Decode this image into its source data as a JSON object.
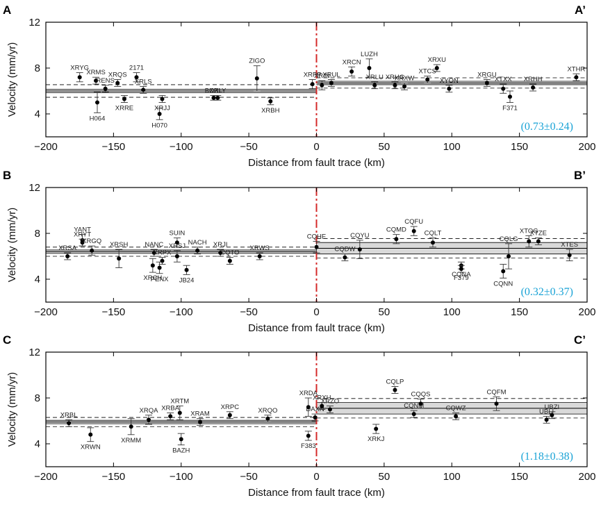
{
  "colors": {
    "fault_line": "#d42a2a",
    "ratio_text": "#1aa3d6",
    "band_fill": "#d9d9d9",
    "points": "#000000"
  },
  "chart_data": [
    {
      "type": "scatter",
      "panel": "A",
      "panel_end": "A’",
      "xlabel": "Distance from fault trace (km)",
      "ylabel": "Velocity (mm/yr)",
      "xlim": [
        -200,
        200
      ],
      "ylim": [
        2,
        12
      ],
      "xticks": [
        -200,
        -150,
        -100,
        -50,
        0,
        50,
        100,
        150,
        200
      ],
      "yticks": [
        4,
        8,
        12
      ],
      "fault_trace_x": 0,
      "left_band": {
        "mean": 6.0,
        "half_width": 0.15,
        "sd": 0.55
      },
      "right_band": {
        "mean": 6.7,
        "half_width": 0.15,
        "sd": 0.45
      },
      "ratio_label": "(0.73±0.24)",
      "points": [
        {
          "name": "XRYG",
          "x": -175,
          "y": 7.2,
          "err": 0.4
        },
        {
          "name": "XRMS",
          "x": -163,
          "y": 6.9,
          "err": 0.3
        },
        {
          "name": "RENS",
          "x": -156,
          "y": 6.2,
          "err": 0.3
        },
        {
          "name": "H064",
          "x": -162,
          "y": 5.0,
          "err": 0.9
        },
        {
          "name": "XRQS",
          "x": -147,
          "y": 6.7,
          "err": 0.3
        },
        {
          "name": "XRRE",
          "x": -142,
          "y": 5.3,
          "err": 0.3
        },
        {
          "name": "2171",
          "x": -133,
          "y": 7.2,
          "err": 0.4
        },
        {
          "name": "XRLS",
          "x": -128,
          "y": 6.1,
          "err": 0.3
        },
        {
          "name": "XRJJ",
          "x": -114,
          "y": 5.3,
          "err": 0.3
        },
        {
          "name": "H070",
          "x": -116,
          "y": 4.0,
          "err": 0.5
        },
        {
          "name": "BOXL",
          "x": -76,
          "y": 5.4,
          "err": 0.2
        },
        {
          "name": "XRLY",
          "x": -73,
          "y": 5.4,
          "err": 0.2
        },
        {
          "name": "ZIGO",
          "x": -44,
          "y": 7.1,
          "err": 1.1
        },
        {
          "name": "XRBH",
          "x": -34,
          "y": 5.1,
          "err": 0.3
        },
        {
          "name": "XRPP",
          "x": -3,
          "y": 6.6,
          "err": 0.4
        },
        {
          "name": "XRIN",
          "x": 4,
          "y": 6.5,
          "err": 0.4
        },
        {
          "name": "XRUL",
          "x": 11,
          "y": 6.7,
          "err": 0.3
        },
        {
          "name": "XRCN",
          "x": 26,
          "y": 7.7,
          "err": 0.4
        },
        {
          "name": "LUZH",
          "x": 39,
          "y": 8.0,
          "err": 0.8
        },
        {
          "name": "XRLU",
          "x": 43,
          "y": 6.5,
          "err": 0.3
        },
        {
          "name": "XRHG",
          "x": 58,
          "y": 6.5,
          "err": 0.3
        },
        {
          "name": "XRXW",
          "x": 65,
          "y": 6.4,
          "err": 0.3
        },
        {
          "name": "XTCS",
          "x": 82,
          "y": 7.0,
          "err": 0.3
        },
        {
          "name": "XRXU",
          "x": 89,
          "y": 8.0,
          "err": 0.3
        },
        {
          "name": "XYON",
          "x": 98,
          "y": 6.2,
          "err": 0.3
        },
        {
          "name": "XRGU",
          "x": 126,
          "y": 6.7,
          "err": 0.3
        },
        {
          "name": "XTXX",
          "x": 138,
          "y": 6.2,
          "err": 0.4
        },
        {
          "name": "F371",
          "x": 143,
          "y": 5.5,
          "err": 0.5
        },
        {
          "name": "XRHH",
          "x": 160,
          "y": 6.3,
          "err": 0.3
        },
        {
          "name": "XTHR",
          "x": 192,
          "y": 7.2,
          "err": 0.3
        }
      ]
    },
    {
      "type": "scatter",
      "panel": "B",
      "panel_end": "B’",
      "xlabel": "Distance from fault trace (km)",
      "ylabel": "Velocity (mm/yr)",
      "xlim": [
        -200,
        200
      ],
      "ylim": [
        2,
        12
      ],
      "xticks": [
        -200,
        -150,
        -100,
        -50,
        0,
        50,
        100,
        150,
        200
      ],
      "yticks": [
        4,
        8,
        12
      ],
      "fault_trace_x": 0,
      "left_band": {
        "mean": 6.4,
        "half_width": 0.15,
        "sd": 0.4
      },
      "right_band": {
        "mean": 6.7,
        "half_width": 0.5,
        "sd": 0.85
      },
      "ratio_label": "(0.32±0.37)",
      "points": [
        {
          "name": "XRSA",
          "x": -184,
          "y": 6.0,
          "err": 0.3
        },
        {
          "name": "YANT",
          "x": -173,
          "y": 7.4,
          "err": 0.5
        },
        {
          "name": "XRYT",
          "x": -173,
          "y": 7.2,
          "err": 0.3
        },
        {
          "name": "XRGQ",
          "x": -166,
          "y": 6.5,
          "err": 0.4
        },
        {
          "name": "XRSH",
          "x": -146,
          "y": 5.8,
          "err": 0.8
        },
        {
          "name": "NANC",
          "x": -120,
          "y": 6.3,
          "err": 0.3
        },
        {
          "name": "XRPX",
          "x": -114,
          "y": 5.6,
          "err": 0.3
        },
        {
          "name": "XRCH",
          "x": -121,
          "y": 5.2,
          "err": 0.6
        },
        {
          "name": "PENX",
          "x": -116,
          "y": 5.0,
          "err": 0.5
        },
        {
          "name": "SUIN",
          "x": -103,
          "y": 7.2,
          "err": 0.4
        },
        {
          "name": "XRSJ",
          "x": -103,
          "y": 6.0,
          "err": 0.5
        },
        {
          "name": "JB24",
          "x": -96,
          "y": 4.8,
          "err": 0.4
        },
        {
          "name": "NACH",
          "x": -88,
          "y": 6.5,
          "err": 0.3
        },
        {
          "name": "XRJI",
          "x": -71,
          "y": 6.3,
          "err": 0.3
        },
        {
          "name": "CQTO",
          "x": -64,
          "y": 5.6,
          "err": 0.3
        },
        {
          "name": "XRWS",
          "x": -42,
          "y": 6.0,
          "err": 0.3
        },
        {
          "name": "CQHE",
          "x": 0,
          "y": 6.8,
          "err": 0.5
        },
        {
          "name": "CQDW",
          "x": 21,
          "y": 5.9,
          "err": 0.3
        },
        {
          "name": "CQYU",
          "x": 32,
          "y": 6.6,
          "err": 0.8
        },
        {
          "name": "CQMD",
          "x": 59,
          "y": 7.5,
          "err": 0.4
        },
        {
          "name": "CQFU",
          "x": 72,
          "y": 8.2,
          "err": 0.4
        },
        {
          "name": "CQLT",
          "x": 86,
          "y": 7.2,
          "err": 0.4
        },
        {
          "name": "CQNA",
          "x": 107,
          "y": 5.2,
          "err": 0.3
        },
        {
          "name": "F379",
          "x": 107,
          "y": 4.9,
          "err": 0.3
        },
        {
          "name": "CQNN",
          "x": 138,
          "y": 4.7,
          "err": 0.6
        },
        {
          "name": "CQLG",
          "x": 142,
          "y": 6.0,
          "err": 1.1
        },
        {
          "name": "XTOG",
          "x": 157,
          "y": 7.3,
          "err": 0.5
        },
        {
          "name": "XTZE",
          "x": 164,
          "y": 7.3,
          "err": 0.3
        },
        {
          "name": "XTES",
          "x": 187,
          "y": 6.1,
          "err": 0.5
        }
      ]
    },
    {
      "type": "scatter",
      "panel": "C",
      "panel_end": "C’",
      "xlabel": "Distance from fault trace (km)",
      "ylabel": "Velocity (mm/yr)",
      "xlim": [
        -200,
        200
      ],
      "ylim": [
        2,
        12
      ],
      "xticks": [
        -200,
        -150,
        -100,
        -50,
        0,
        50,
        100,
        150,
        200
      ],
      "yticks": [
        4,
        8,
        12
      ],
      "fault_trace_x": 0,
      "left_band": {
        "mean": 5.9,
        "half_width": 0.15,
        "sd": 0.4
      },
      "right_band": {
        "mean": 7.1,
        "half_width": 0.5,
        "sd": 0.85
      },
      "ratio_label": "(1.18±0.38)",
      "points": [
        {
          "name": "XRBL",
          "x": -183,
          "y": 5.8,
          "err": 0.3
        },
        {
          "name": "XRWN",
          "x": -167,
          "y": 4.8,
          "err": 0.6
        },
        {
          "name": "XRMM",
          "x": -137,
          "y": 5.5,
          "err": 0.7
        },
        {
          "name": "XRQA",
          "x": -124,
          "y": 6.1,
          "err": 0.4
        },
        {
          "name": "XRBA",
          "x": -108,
          "y": 6.4,
          "err": 0.3
        },
        {
          "name": "XRTM",
          "x": -101,
          "y": 6.7,
          "err": 0.6
        },
        {
          "name": "BAZH",
          "x": -100,
          "y": 4.4,
          "err": 0.5
        },
        {
          "name": "XRAM",
          "x": -86,
          "y": 5.9,
          "err": 0.3
        },
        {
          "name": "XRPC",
          "x": -64,
          "y": 6.5,
          "err": 0.3
        },
        {
          "name": "XRQO",
          "x": -36,
          "y": 6.2,
          "err": 0.3
        },
        {
          "name": "XRDA",
          "x": -6,
          "y": 7.2,
          "err": 0.8
        },
        {
          "name": "F383",
          "x": -6,
          "y": 4.7,
          "err": 0.4
        },
        {
          "name": "DAXN",
          "x": -1,
          "y": 6.3,
          "err": 0.3
        },
        {
          "name": "XRXH",
          "x": 4,
          "y": 7.3,
          "err": 0.3
        },
        {
          "name": "XRZO",
          "x": 10,
          "y": 7.0,
          "err": 0.3
        },
        {
          "name": "XRKJ",
          "x": 44,
          "y": 5.3,
          "err": 0.4
        },
        {
          "name": "CQLP",
          "x": 58,
          "y": 8.7,
          "err": 0.3
        },
        {
          "name": "CQNM",
          "x": 72,
          "y": 6.6,
          "err": 0.3
        },
        {
          "name": "CQQS",
          "x": 77,
          "y": 7.5,
          "err": 0.4
        },
        {
          "name": "CQWZ",
          "x": 103,
          "y": 6.4,
          "err": 0.3
        },
        {
          "name": "CQFM",
          "x": 133,
          "y": 7.5,
          "err": 0.6
        },
        {
          "name": "UBZI",
          "x": 174,
          "y": 6.5,
          "err": 0.3
        },
        {
          "name": "UBLI",
          "x": 170,
          "y": 6.1,
          "err": 0.3
        }
      ]
    }
  ]
}
